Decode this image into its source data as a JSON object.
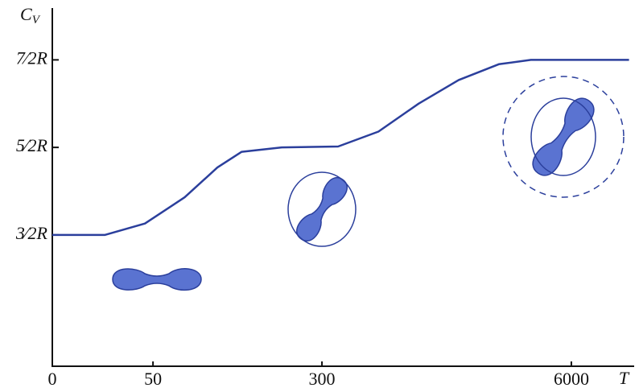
{
  "chart_data": {
    "type": "line",
    "y_label": {
      "text": "C",
      "subscript": "V"
    },
    "x_label": "T",
    "x": [
      0,
      26,
      46,
      70,
      99,
      128,
      196,
      364,
      591,
      957,
      1550,
      2510,
      3690,
      12000
    ],
    "series": [
      {
        "color": "#2b3f9c",
        "values": [
          1.5,
          1.5,
          1.63,
          1.93,
          2.27,
          2.45,
          2.5,
          2.51,
          2.68,
          3.0,
          3.27,
          3.45,
          3.5,
          3.5
        ]
      }
    ],
    "xlim": [
      0,
      12000
    ],
    "xticks": [
      0,
      50,
      300,
      6000
    ],
    "ylim": [
      0,
      4
    ],
    "yticks": [
      {
        "value": 1.5,
        "label": "3⁄2R"
      },
      {
        "value": 2.5,
        "label": "5⁄2R"
      },
      {
        "value": 3.5,
        "label": "7⁄2R"
      }
    ]
  }
}
